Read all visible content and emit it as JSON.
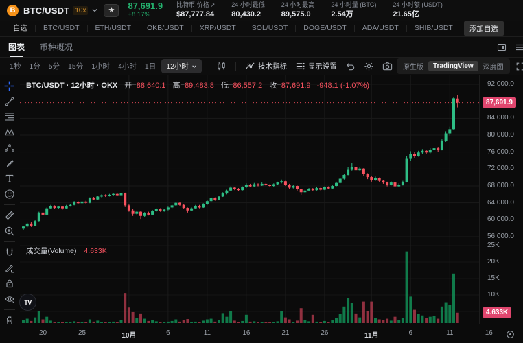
{
  "header": {
    "symbol": "BTC/USDT",
    "leverage": "10x",
    "price": "87,691.9",
    "change": "+8.17%",
    "stats": [
      {
        "label": "比特币 价格",
        "value": "$87,777.84"
      },
      {
        "label": "24 小时最低",
        "value": "80,430.2"
      },
      {
        "label": "24 小时最高",
        "value": "89,575.0"
      },
      {
        "label": "24 小时量 (BTC)",
        "value": "2.54万"
      },
      {
        "label": "24 小时额 (USDT)",
        "value": "21.65亿"
      }
    ]
  },
  "watchlist": {
    "items": [
      "自选",
      "BTC/USDT",
      "ETH/USDT",
      "OKB/USDT",
      "XRP/USDT",
      "SOL/USDT",
      "DOGE/USDT",
      "ADA/USDT",
      "SHIB/USDT"
    ],
    "add_label": "添加自选"
  },
  "view_tabs": {
    "chart": "图表",
    "overview": "币种概况"
  },
  "toolbar": {
    "intervals": [
      "1秒",
      "1分",
      "5分",
      "15分",
      "1小时",
      "4小时",
      "1日"
    ],
    "selected_interval": "12小时",
    "indicators": "技术指标",
    "display_settings": "显示设置"
  },
  "mode_switch": {
    "native": "原生版",
    "tradingview": "TradingView",
    "depth": "深度图"
  },
  "legend": {
    "title": "BTC/USDT · 12小时 · OKX",
    "open_label": "开=",
    "open": "88,640.1",
    "high_label": "高=",
    "high": "89,483.8",
    "low_label": "低=",
    "low": "86,557.2",
    "close_label": "收=",
    "close": "87,691.9",
    "change": "-948.1 (-1.07%)"
  },
  "volume_pane": {
    "label": "成交量(Volume)",
    "value": "4.633K"
  },
  "logo_text": {
    "bitcoin": "B",
    "tradingview": "TV"
  },
  "colors": {
    "up": "#2ebd85",
    "down": "#f7525f",
    "badge": "#e0466e",
    "vol_up": "rgba(17,150,90,0.8)",
    "vol_down": "rgba(190,62,82,0.75)",
    "grid": "#1a1a1a",
    "accent_green": "#24b26e",
    "bitcoin_orange": "#f7931a",
    "crosshair_blue": "#2d6bff"
  },
  "chart_data": {
    "type": "candlestick",
    "symbol": "BTC/USDT",
    "interval": "12小时",
    "exchange": "OKX",
    "last": {
      "open": 88640.1,
      "high": 89483.8,
      "low": 86557.2,
      "close": 87691.9,
      "change": -948.1,
      "change_pct": "-1.07%",
      "volume_k": 4.633
    },
    "price_axis": {
      "min": 56000,
      "max": 92000,
      "ticks": [
        {
          "p": 92000,
          "t": "92,000.0"
        },
        {
          "p": 84000,
          "t": "84,000.0"
        },
        {
          "p": 80000,
          "t": "80,000.0"
        },
        {
          "p": 76000,
          "t": "76,000.0"
        },
        {
          "p": 72000,
          "t": "72,000.0"
        },
        {
          "p": 68000,
          "t": "68,000.0"
        },
        {
          "p": 64000,
          "t": "64,000.0"
        },
        {
          "p": 60000,
          "t": "60,000.0"
        },
        {
          "p": 56000,
          "t": "56,000.0"
        }
      ],
      "badge": "87,691.9"
    },
    "volume_axis": {
      "unit": "K",
      "ticks": [
        {
          "v": 25,
          "t": "25K"
        },
        {
          "v": 20,
          "t": "20K"
        },
        {
          "v": 15,
          "t": "15K"
        },
        {
          "v": 10,
          "t": "10K"
        }
      ],
      "badge": "4.633K"
    },
    "time_labels": [
      {
        "i": 5,
        "t": "20"
      },
      {
        "i": 15,
        "t": "25"
      },
      {
        "i": 27,
        "t": "10月",
        "b": 1
      },
      {
        "i": 37,
        "t": "6"
      },
      {
        "i": 47,
        "t": "11"
      },
      {
        "i": 57,
        "t": "16"
      },
      {
        "i": 67,
        "t": "21"
      },
      {
        "i": 77,
        "t": "26"
      },
      {
        "i": 89,
        "t": "11月",
        "b": 1
      },
      {
        "i": 99,
        "t": "6"
      },
      {
        "i": 109,
        "t": "11"
      },
      {
        "i": 119,
        "t": "16"
      }
    ],
    "candles_format": [
      "open",
      "high",
      "low",
      "close",
      "volume_k"
    ],
    "candles": [
      [
        57900,
        58600,
        57600,
        58400,
        2.4
      ],
      [
        58400,
        59300,
        58200,
        59100,
        2.8
      ],
      [
        59100,
        59400,
        58300,
        58600,
        2.1
      ],
      [
        58600,
        59900,
        58500,
        59700,
        3.2
      ],
      [
        59700,
        61900,
        59600,
        61700,
        5.2
      ],
      [
        61700,
        62000,
        60900,
        61200,
        2.6
      ],
      [
        61200,
        62900,
        61100,
        62700,
        3.4
      ],
      [
        62700,
        63500,
        62500,
        63200,
        2.2
      ],
      [
        63200,
        63400,
        62600,
        62800,
        1.8
      ],
      [
        62800,
        63300,
        62500,
        63100,
        1.6
      ],
      [
        63100,
        63200,
        62400,
        62700,
        1.5
      ],
      [
        62700,
        63500,
        62600,
        63300,
        1.7
      ],
      [
        63300,
        63700,
        63100,
        63500,
        1.4
      ],
      [
        63500,
        64400,
        63400,
        64200,
        2.0
      ],
      [
        64200,
        64400,
        63700,
        63900,
        1.6
      ],
      [
        63900,
        64500,
        63800,
        64300,
        1.8
      ],
      [
        64300,
        64500,
        63800,
        64000,
        1.5
      ],
      [
        64000,
        65300,
        63900,
        65100,
        2.6
      ],
      [
        65100,
        65400,
        64600,
        64800,
        1.9
      ],
      [
        64800,
        65700,
        64700,
        65500,
        2.2
      ],
      [
        65500,
        66000,
        65300,
        65800,
        1.8
      ],
      [
        65800,
        66000,
        65400,
        65600,
        1.5
      ],
      [
        65600,
        66100,
        65500,
        65900,
        1.6
      ],
      [
        65900,
        66300,
        65700,
        66100,
        1.9
      ],
      [
        66100,
        66300,
        65600,
        65800,
        1.7
      ],
      [
        65800,
        66600,
        65700,
        66300,
        2.3
      ],
      [
        66300,
        66400,
        63000,
        63400,
        10.6
      ],
      [
        63400,
        63600,
        61900,
        62200,
        6.2
      ],
      [
        62200,
        62500,
        60900,
        61400,
        4.8
      ],
      [
        61400,
        62200,
        61100,
        61900,
        3.0
      ],
      [
        61900,
        62000,
        60200,
        60900,
        4.4
      ],
      [
        60900,
        61800,
        60600,
        61600,
        2.8
      ],
      [
        61600,
        61900,
        61000,
        61200,
        2.1
      ],
      [
        61200,
        62300,
        61100,
        62100,
        2.5
      ],
      [
        62100,
        62700,
        61900,
        62500,
        2.0
      ],
      [
        62500,
        62700,
        61900,
        62100,
        1.7
      ],
      [
        62100,
        62600,
        61900,
        62400,
        1.5
      ],
      [
        62400,
        63100,
        62200,
        62900,
        1.9
      ],
      [
        62900,
        63600,
        62700,
        63400,
        2.1
      ],
      [
        63400,
        64200,
        63200,
        64000,
        2.6
      ],
      [
        64000,
        64100,
        63300,
        63500,
        1.9
      ],
      [
        63500,
        63700,
        62500,
        62800,
        2.4
      ],
      [
        62800,
        62900,
        61700,
        62200,
        2.7
      ],
      [
        62200,
        62900,
        62000,
        62700,
        1.8
      ],
      [
        62700,
        63500,
        62500,
        63300,
        1.9
      ],
      [
        63300,
        63500,
        62700,
        62900,
        1.5
      ],
      [
        62900,
        63900,
        62800,
        63700,
        2.2
      ],
      [
        63700,
        64600,
        63500,
        64400,
        2.6
      ],
      [
        64400,
        65300,
        64200,
        65100,
        2.8
      ],
      [
        65100,
        65300,
        64500,
        64700,
        1.9
      ],
      [
        64700,
        65700,
        64600,
        65500,
        2.4
      ],
      [
        65500,
        66500,
        65400,
        66200,
        4.5
      ],
      [
        66200,
        67100,
        66000,
        66900,
        3.4
      ],
      [
        66900,
        67900,
        66700,
        67600,
        5.0
      ],
      [
        67600,
        67800,
        67000,
        67200,
        2.2
      ],
      [
        67200,
        67500,
        66700,
        67000,
        1.8
      ],
      [
        67000,
        67900,
        66900,
        67700,
        2.1
      ],
      [
        67700,
        68600,
        67500,
        68300,
        4.0
      ],
      [
        68300,
        68500,
        67700,
        67900,
        1.9
      ],
      [
        67900,
        68700,
        67800,
        68400,
        2.0
      ],
      [
        68400,
        68600,
        67900,
        68100,
        1.6
      ],
      [
        68100,
        68800,
        68000,
        68500,
        1.8
      ],
      [
        68500,
        68700,
        68000,
        68200,
        1.5
      ],
      [
        68200,
        68400,
        67700,
        68000,
        1.7
      ],
      [
        68000,
        68600,
        67800,
        68400,
        1.6
      ],
      [
        68400,
        69000,
        68200,
        68800,
        2.0
      ],
      [
        68800,
        69500,
        68600,
        69100,
        5.2
      ],
      [
        69100,
        69200,
        68000,
        68300,
        3.2
      ],
      [
        68300,
        68500,
        67300,
        67600,
        2.6
      ],
      [
        67600,
        68200,
        67400,
        68000,
        1.8
      ],
      [
        68000,
        68100,
        66900,
        67200,
        2.2
      ],
      [
        67200,
        67300,
        65900,
        66500,
        6.0
      ],
      [
        66500,
        67100,
        66300,
        66900,
        2.4
      ],
      [
        66900,
        67500,
        66700,
        67300,
        2.0
      ],
      [
        67300,
        67500,
        66800,
        67000,
        4.0
      ],
      [
        67000,
        67700,
        66900,
        67500,
        1.9
      ],
      [
        67500,
        67600,
        66900,
        67100,
        1.6
      ],
      [
        67100,
        67900,
        67000,
        67700,
        2.1
      ],
      [
        67700,
        67900,
        67200,
        67400,
        1.6
      ],
      [
        67400,
        68200,
        67300,
        68000,
        2.3
      ],
      [
        68000,
        69000,
        67900,
        68700,
        3.0
      ],
      [
        68700,
        69900,
        68600,
        69700,
        4.2
      ],
      [
        69700,
        70900,
        69500,
        70600,
        6.5
      ],
      [
        70600,
        72400,
        70500,
        71800,
        9.0
      ],
      [
        71800,
        73400,
        71600,
        72400,
        7.5
      ],
      [
        72400,
        72800,
        71400,
        71700,
        4.4
      ],
      [
        71700,
        72500,
        71500,
        72100,
        3.2
      ],
      [
        72100,
        72200,
        70400,
        70800,
        8.0
      ],
      [
        70800,
        71000,
        69600,
        70100,
        5.2
      ],
      [
        70100,
        70300,
        69000,
        69400,
        8.0
      ],
      [
        69400,
        70200,
        69200,
        69900,
        3.0
      ],
      [
        69900,
        70000,
        68900,
        69200,
        2.6
      ],
      [
        69200,
        69400,
        68500,
        68800,
        2.4
      ],
      [
        68800,
        69000,
        67900,
        68300,
        2.8
      ],
      [
        68300,
        69100,
        68100,
        68800,
        2.2
      ],
      [
        68800,
        68900,
        67200,
        67900,
        3.4
      ],
      [
        67900,
        68600,
        67700,
        68300,
        2.5
      ],
      [
        68300,
        69200,
        68100,
        68900,
        3.0
      ],
      [
        68900,
        75100,
        68800,
        74400,
        23.2
      ],
      [
        74400,
        76200,
        73900,
        75600,
        9.5
      ],
      [
        75600,
        76000,
        74600,
        75100,
        5.5
      ],
      [
        75100,
        76300,
        74900,
        75900,
        4.2
      ],
      [
        75900,
        76700,
        75600,
        76300,
        3.8
      ],
      [
        76300,
        76500,
        75500,
        75900,
        3.0
      ],
      [
        75900,
        76900,
        75700,
        76500,
        3.4
      ],
      [
        76500,
        77300,
        76200,
        76900,
        3.6
      ],
      [
        76900,
        77100,
        76100,
        76500,
        2.8
      ],
      [
        76500,
        79000,
        76400,
        78600,
        6.5
      ],
      [
        78600,
        80900,
        78400,
        80400,
        7.8
      ],
      [
        80400,
        82000,
        79900,
        81400,
        6.9
      ],
      [
        81400,
        89000,
        81200,
        88700,
        16.5
      ],
      [
        88640.1,
        89483.8,
        86557.2,
        87691.9,
        4.633
      ]
    ]
  }
}
